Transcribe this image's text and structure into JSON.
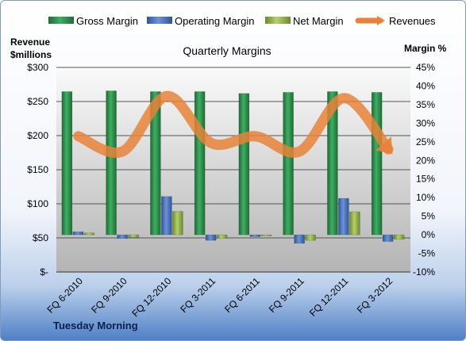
{
  "chart_data": {
    "type": "bar",
    "title": "Quarterly Margins",
    "company": "Tuesday Morning",
    "categories": [
      "FQ 6-2010",
      "FQ 9-2010",
      "FQ 12-2010",
      "FQ 3-2011",
      "FQ 6-2011",
      "FQ 9-2011",
      "FQ 12-2011",
      "FQ 3-2012"
    ],
    "y_left": {
      "label_line1": "Revenue",
      "label_line2": "$millions",
      "range": [
        0,
        300
      ],
      "ticks": [
        "$-",
        "$50",
        "$100",
        "$150",
        "$200",
        "$250",
        "$300"
      ]
    },
    "y_right": {
      "label": "Margin %",
      "range": [
        -10,
        45
      ],
      "ticks": [
        "-10%",
        "-5%",
        "0%",
        "5%",
        "10%",
        "15%",
        "20%",
        "25%",
        "30%",
        "35%",
        "40%",
        "45%"
      ]
    },
    "series": [
      {
        "name": "Gross Margin",
        "type": "bar",
        "axis": "right",
        "color": "#2e8b4a",
        "values": [
          38.5,
          38.7,
          38.5,
          38.5,
          38.0,
          38.3,
          38.5,
          38.3
        ]
      },
      {
        "name": "Operating Margin",
        "type": "bar",
        "axis": "right",
        "color": "#4a74b8",
        "values": [
          0.8,
          -1.0,
          10.3,
          -1.5,
          -0.5,
          -2.3,
          9.8,
          -1.8
        ]
      },
      {
        "name": "Net Margin",
        "type": "bar",
        "axis": "right",
        "color": "#8fb04a",
        "values": [
          0.5,
          -0.7,
          6.3,
          -1.0,
          -0.3,
          -1.5,
          6.2,
          -1.2
        ]
      },
      {
        "name": "Revenues",
        "type": "line",
        "axis": "left",
        "color": "#e8823a",
        "values": [
          199,
          177,
          258,
          189,
          199,
          177,
          255,
          180
        ]
      }
    ],
    "legend": "top",
    "grid": true
  }
}
